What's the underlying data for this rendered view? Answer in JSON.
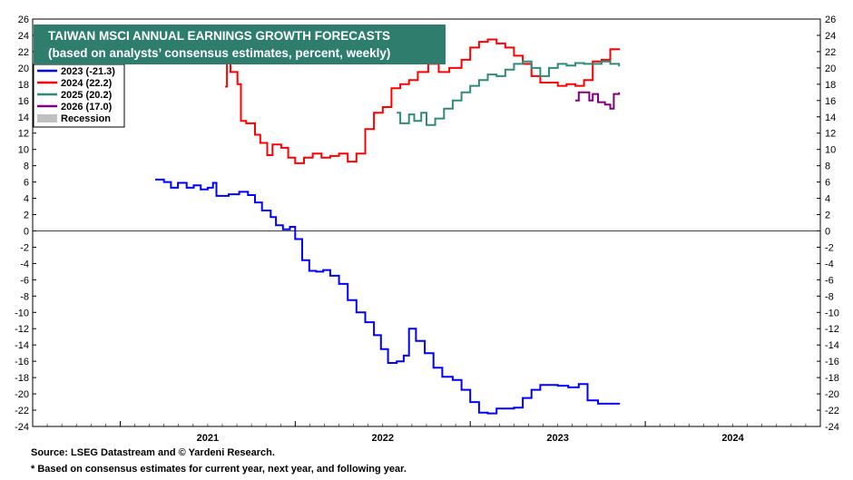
{
  "chart_data": {
    "type": "line",
    "title": "TAIWAN MSCI ANNUAL EARNINGS GROWTH FORECASTS",
    "subtitle": "(based on analysts’ consensus estimates, percent, weekly)",
    "ylim": [
      -24,
      26
    ],
    "y_ticks": [
      "26",
      "24",
      "22",
      "20",
      "18",
      "16",
      "14",
      "12",
      "10",
      "8",
      "6",
      "4",
      "2",
      "0",
      "-2",
      "-4",
      "-6",
      "-8",
      "-10",
      "-12",
      "-14",
      "-16",
      "-18",
      "-20",
      "-22",
      "-24"
    ],
    "x_ticks": [
      "2021",
      "2022",
      "2023",
      "2024"
    ],
    "xlim": [
      2020.5,
      2025.0
    ],
    "legend_position": "top-left",
    "colors": {
      "2023": "#0000ff",
      "2024": "#ff0000",
      "2025": "#2e8b7a",
      "2026": "#800080",
      "recession": "#c0c0c0",
      "title_bg": "#2e7d6d"
    },
    "legend": [
      {
        "label": "2023 (-21.3)",
        "color": "#0000ff"
      },
      {
        "label": "2024 (22.2)",
        "color": "#ff0000"
      },
      {
        "label": "2025 (20.2)",
        "color": "#2e8b7a"
      },
      {
        "label": "2026 (17.0)",
        "color": "#800080"
      },
      {
        "label": "Recession",
        "color": "#c0c0c0"
      }
    ],
    "series": [
      {
        "name": "2023 (-21.3)",
        "color": "#0000ff",
        "points": [
          [
            2021.2,
            6.3
          ],
          [
            2021.25,
            6.0
          ],
          [
            2021.29,
            5.3
          ],
          [
            2021.33,
            5.9
          ],
          [
            2021.38,
            5.3
          ],
          [
            2021.42,
            5.6
          ],
          [
            2021.46,
            5.1
          ],
          [
            2021.5,
            5.3
          ],
          [
            2021.53,
            5.9
          ],
          [
            2021.55,
            4.3
          ],
          [
            2021.62,
            4.5
          ],
          [
            2021.68,
            4.8
          ],
          [
            2021.73,
            4.4
          ],
          [
            2021.77,
            3.5
          ],
          [
            2021.81,
            2.5
          ],
          [
            2021.86,
            1.7
          ],
          [
            2021.89,
            0.7
          ],
          [
            2021.93,
            0.2
          ],
          [
            2021.97,
            0.5
          ],
          [
            2022.0,
            -1.0
          ],
          [
            2022.04,
            -3.6
          ],
          [
            2022.08,
            -4.9
          ],
          [
            2022.12,
            -5.0
          ],
          [
            2022.16,
            -4.8
          ],
          [
            2022.2,
            -5.5
          ],
          [
            2022.25,
            -6.5
          ],
          [
            2022.3,
            -8.5
          ],
          [
            2022.35,
            -10.0
          ],
          [
            2022.4,
            -11.2
          ],
          [
            2022.45,
            -12.8
          ],
          [
            2022.49,
            -14.5
          ],
          [
            2022.53,
            -16.2
          ],
          [
            2022.58,
            -16.0
          ],
          [
            2022.62,
            -15.3
          ],
          [
            2022.65,
            -12.0
          ],
          [
            2022.69,
            -13.5
          ],
          [
            2022.74,
            -15.0
          ],
          [
            2022.79,
            -16.8
          ],
          [
            2022.84,
            -17.9
          ],
          [
            2022.9,
            -18.3
          ],
          [
            2022.95,
            -19.5
          ],
          [
            2023.0,
            -21.0
          ],
          [
            2023.05,
            -22.3
          ],
          [
            2023.1,
            -22.4
          ],
          [
            2023.15,
            -21.8
          ],
          [
            2023.2,
            -21.8
          ],
          [
            2023.25,
            -21.7
          ],
          [
            2023.3,
            -20.5
          ],
          [
            2023.35,
            -19.5
          ],
          [
            2023.4,
            -18.9
          ],
          [
            2023.5,
            -19.0
          ],
          [
            2023.56,
            -19.2
          ],
          [
            2023.62,
            -18.8
          ],
          [
            2023.67,
            -20.8
          ],
          [
            2023.73,
            -21.2
          ],
          [
            2023.85,
            -21.3
          ]
        ]
      },
      {
        "name": "2024 (22.2)",
        "color": "#ff0000",
        "points": [
          [
            2021.6,
            17.7
          ],
          [
            2021.61,
            21.0
          ],
          [
            2021.63,
            19.5
          ],
          [
            2021.67,
            18.0
          ],
          [
            2021.69,
            13.5
          ],
          [
            2021.72,
            13.2
          ],
          [
            2021.77,
            11.8
          ],
          [
            2021.8,
            10.8
          ],
          [
            2021.84,
            9.3
          ],
          [
            2021.87,
            10.6
          ],
          [
            2021.92,
            10.2
          ],
          [
            2021.96,
            9.0
          ],
          [
            2022.0,
            8.3
          ],
          [
            2022.05,
            9.0
          ],
          [
            2022.1,
            9.5
          ],
          [
            2022.15,
            9.0
          ],
          [
            2022.2,
            9.2
          ],
          [
            2022.25,
            9.5
          ],
          [
            2022.3,
            8.5
          ],
          [
            2022.35,
            9.5
          ],
          [
            2022.4,
            12.5
          ],
          [
            2022.45,
            14.5
          ],
          [
            2022.5,
            15.2
          ],
          [
            2022.55,
            17.5
          ],
          [
            2022.6,
            18.0
          ],
          [
            2022.65,
            18.5
          ],
          [
            2022.7,
            19.5
          ],
          [
            2022.76,
            20.5
          ],
          [
            2022.82,
            19.5
          ],
          [
            2022.88,
            20.0
          ],
          [
            2022.95,
            21.0
          ],
          [
            2023.0,
            22.5
          ],
          [
            2023.05,
            23.2
          ],
          [
            2023.1,
            23.5
          ],
          [
            2023.15,
            23.0
          ],
          [
            2023.2,
            22.5
          ],
          [
            2023.25,
            21.5
          ],
          [
            2023.3,
            20.5
          ],
          [
            2023.35,
            19.0
          ],
          [
            2023.4,
            18.2
          ],
          [
            2023.5,
            17.8
          ],
          [
            2023.55,
            18.0
          ],
          [
            2023.6,
            17.8
          ],
          [
            2023.65,
            18.5
          ],
          [
            2023.7,
            20.8
          ],
          [
            2023.75,
            21.0
          ],
          [
            2023.8,
            22.3
          ],
          [
            2023.85,
            22.2
          ]
        ]
      },
      {
        "name": "2025 (20.2)",
        "color": "#2e8b7a",
        "points": [
          [
            2022.58,
            14.5
          ],
          [
            2022.6,
            13.2
          ],
          [
            2022.65,
            14.3
          ],
          [
            2022.68,
            13.5
          ],
          [
            2022.72,
            14.5
          ],
          [
            2022.75,
            13.0
          ],
          [
            2022.8,
            13.8
          ],
          [
            2022.85,
            15.0
          ],
          [
            2022.9,
            16.0
          ],
          [
            2022.95,
            17.0
          ],
          [
            2023.0,
            17.8
          ],
          [
            2023.05,
            18.5
          ],
          [
            2023.1,
            19.2
          ],
          [
            2023.15,
            19.0
          ],
          [
            2023.2,
            19.8
          ],
          [
            2023.25,
            20.5
          ],
          [
            2023.3,
            20.8
          ],
          [
            2023.35,
            20.0
          ],
          [
            2023.4,
            19.0
          ],
          [
            2023.45,
            20.0
          ],
          [
            2023.5,
            20.5
          ],
          [
            2023.55,
            20.3
          ],
          [
            2023.6,
            20.6
          ],
          [
            2023.65,
            20.5
          ],
          [
            2023.7,
            20.5
          ],
          [
            2023.75,
            20.8
          ],
          [
            2023.8,
            20.5
          ],
          [
            2023.85,
            20.2
          ]
        ]
      },
      {
        "name": "2026 (17.0)",
        "color": "#800080",
        "points": [
          [
            2023.6,
            16.0
          ],
          [
            2023.62,
            17.0
          ],
          [
            2023.66,
            17.0
          ],
          [
            2023.68,
            16.0
          ],
          [
            2023.7,
            16.8
          ],
          [
            2023.73,
            15.8
          ],
          [
            2023.77,
            15.5
          ],
          [
            2023.8,
            15.0
          ],
          [
            2023.82,
            16.8
          ],
          [
            2023.85,
            17.0
          ]
        ]
      }
    ],
    "source": "Source: LSEG Datastream and © Yardeni Research.",
    "footnote": "* Based on consensus estimates for current year, next year, and following year."
  }
}
